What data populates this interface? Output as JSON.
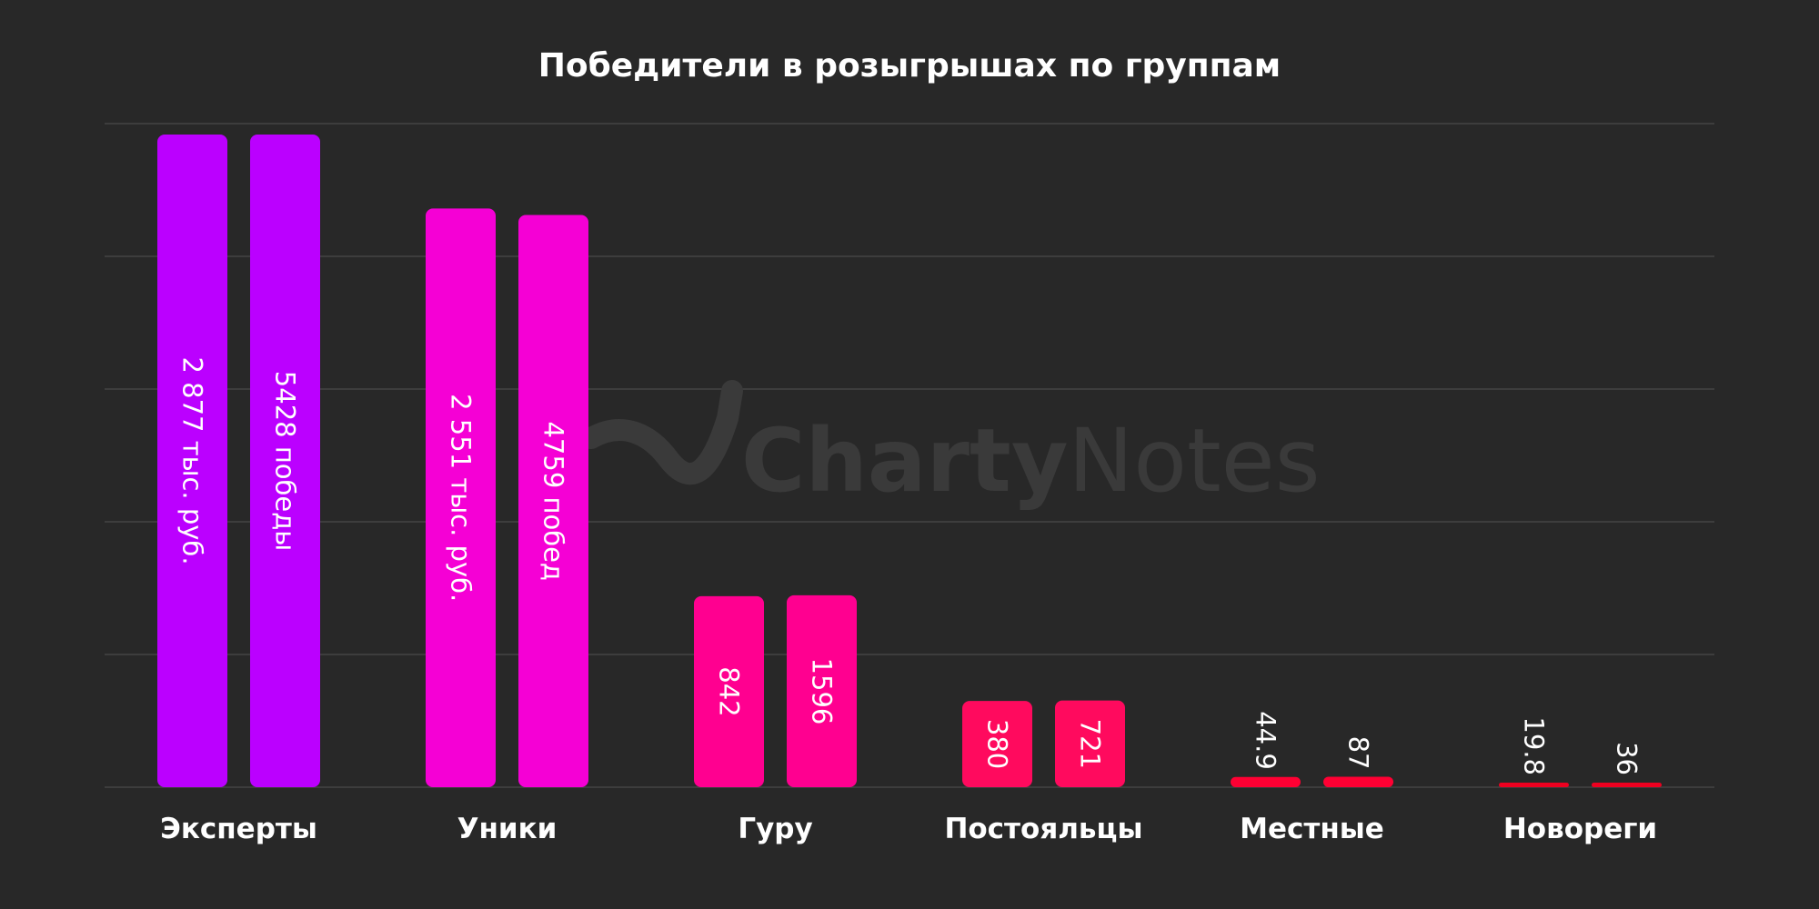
{
  "chart_data": {
    "type": "bar",
    "title": "Победители в розыгрышах по группам",
    "categories": [
      "Эксперты",
      "Уники",
      "Гуру",
      "Постояльцы",
      "Местные",
      "Новореги"
    ],
    "series": [
      {
        "values": [
          2877,
          2551,
          842,
          380,
          44.9,
          19.8
        ],
        "labels": [
          "2 877 тыс. руб.",
          "2 551 тыс. руб.",
          "842",
          "380",
          "44.9",
          "19.8"
        ]
      },
      {
        "values": [
          5428,
          4759,
          1596,
          721,
          87,
          36
        ],
        "labels": [
          "5428 победы",
          "4759 побед",
          "1596",
          "721",
          "87",
          "36"
        ]
      }
    ],
    "colors": [
      "#bb00ff",
      "#f500d5",
      "#ff0090",
      "#ff0a5e",
      "#ff0033",
      "#ee0020"
    ],
    "grid": true,
    "legend": "none",
    "xlabel": "",
    "ylabel": ""
  },
  "watermark": {
    "bold_text": "Charty",
    "light_text": "Notes"
  }
}
